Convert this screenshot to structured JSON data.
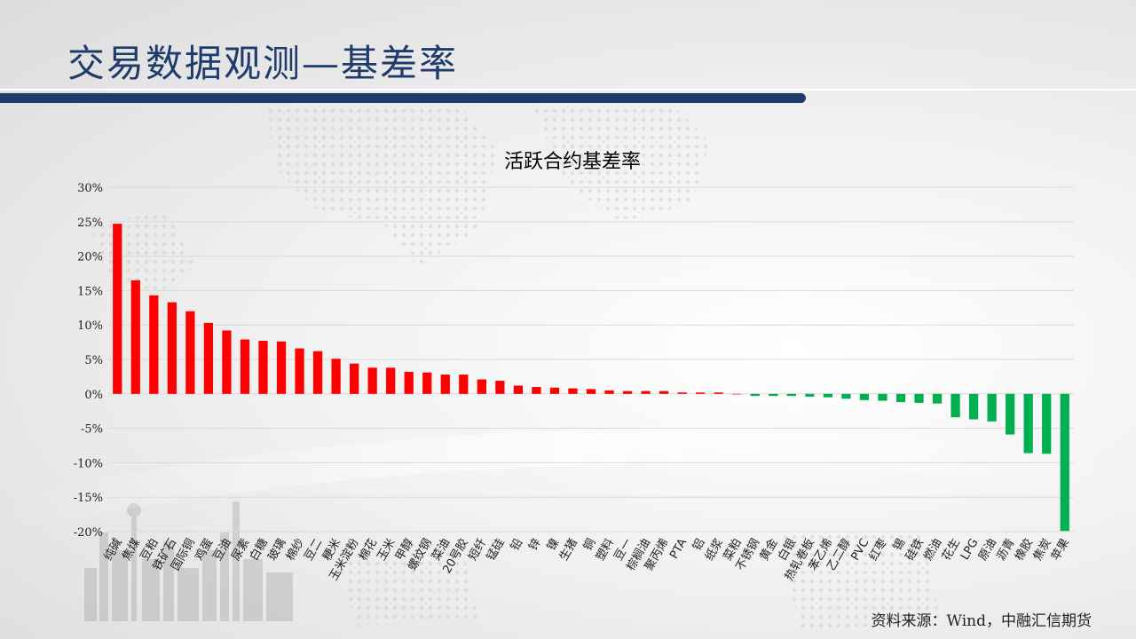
{
  "slide": {
    "title": "交易数据观测—基差率",
    "source": "资料来源：Wind，中融汇信期货"
  },
  "colors": {
    "positive": "#ff0000",
    "negative": "#00b050",
    "title": "#1f3b6b",
    "grid": "#d9d9d9"
  },
  "chart_data": {
    "type": "bar",
    "title": "活跃合约基差率",
    "xlabel": "",
    "ylabel": "",
    "ylim": [
      -20,
      30
    ],
    "yticks": [
      "30%",
      "25%",
      "20%",
      "15%",
      "10%",
      "5%",
      "0%",
      "-5%",
      "-10%",
      "-15%",
      "-20%"
    ],
    "grid": true,
    "legend": "none",
    "categories": [
      "纯碱",
      "焦煤",
      "豆粕",
      "铁矿石",
      "国际铜",
      "鸡蛋",
      "豆油",
      "尿素",
      "白糖",
      "玻璃",
      "棉纱",
      "豆二",
      "粳米",
      "玉米淀粉",
      "棉花",
      "玉米",
      "甲醇",
      "螺纹钢",
      "菜油",
      "20号胶",
      "短纤",
      "锰硅",
      "铅",
      "锌",
      "镍",
      "生猪",
      "铜",
      "塑料",
      "豆一",
      "棕榈油",
      "聚丙烯",
      "PTA",
      "铝",
      "纸浆",
      "菜粕",
      "不锈钢",
      "黄金",
      "白银",
      "热轧卷板",
      "苯乙烯",
      "乙二醇",
      "PVC",
      "红枣",
      "锡",
      "硅铁",
      "燃油",
      "花生",
      "LPG",
      "原油",
      "沥青",
      "橡胶",
      "焦炭",
      "苹果"
    ],
    "values": [
      24.7,
      16.5,
      14.3,
      13.3,
      12.0,
      10.3,
      9.2,
      7.9,
      7.7,
      7.6,
      6.6,
      6.2,
      5.1,
      4.4,
      3.8,
      3.8,
      3.2,
      3.1,
      2.8,
      2.8,
      2.1,
      1.9,
      1.2,
      1.0,
      0.9,
      0.8,
      0.7,
      0.5,
      0.4,
      0.4,
      0.4,
      0.2,
      0.2,
      0.2,
      0.0,
      -0.3,
      -0.3,
      -0.3,
      -0.4,
      -0.5,
      -0.7,
      -0.9,
      -1.0,
      -1.2,
      -1.3,
      -1.4,
      -3.4,
      -3.7,
      -4.0,
      -5.9,
      -8.6,
      -8.7,
      -19.9
    ]
  }
}
